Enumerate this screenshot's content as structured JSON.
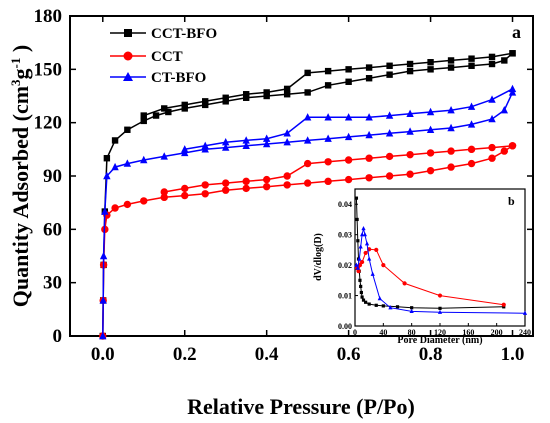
{
  "chart_data": [
    {
      "type": "line",
      "panel_label": "a",
      "xlabel": "Relative Pressure (P/Po)",
      "ylabel_main": "Quantity Adsorbed (cm",
      "ylabel_sup1": "3",
      "ylabel_mid": "g",
      "ylabel_sup2": "-1",
      "ylabel_end": " )",
      "xlim": [
        -0.08,
        1.05
      ],
      "ylim": [
        0,
        180
      ],
      "xticks": [
        0.0,
        0.2,
        0.4,
        0.6,
        0.8,
        1.0
      ],
      "xtick_labels": [
        "0.0",
        "0.2",
        "0.4",
        "0.6",
        "0.8",
        "1.0"
      ],
      "yticks": [
        0,
        30,
        60,
        90,
        120,
        150,
        180
      ],
      "ytick_labels": [
        "0",
        "30",
        "60",
        "90",
        "120",
        "150",
        "180"
      ],
      "legend_position": "top-left",
      "series": [
        {
          "name": "CCT-BFO",
          "color": "#000000",
          "marker": "square",
          "adsorption": {
            "x": [
              0.0,
              0.001,
              0.002,
              0.005,
              0.01,
              0.03,
              0.06,
              0.1,
              0.13,
              0.16,
              0.2,
              0.25,
              0.3,
              0.35,
              0.4,
              0.45,
              0.5,
              0.55,
              0.6,
              0.65,
              0.7,
              0.75,
              0.8,
              0.85,
              0.9,
              0.95,
              0.98,
              1.0
            ],
            "y": [
              0,
              20,
              40,
              70,
              100,
              110,
              116,
              121,
              124,
              126,
              128,
              130,
              132,
              134,
              135,
              136,
              137,
              141,
              143,
              145,
              147,
              149,
              150,
              151,
              152,
              153,
              155,
              159
            ]
          },
          "desorption": {
            "x": [
              1.0,
              0.95,
              0.9,
              0.85,
              0.8,
              0.75,
              0.7,
              0.65,
              0.6,
              0.55,
              0.5,
              0.45,
              0.4,
              0.35,
              0.3,
              0.25,
              0.2,
              0.15,
              0.1
            ],
            "y": [
              159,
              157,
              156,
              155,
              154,
              153,
              152,
              151,
              150,
              149,
              148,
              139,
              137,
              136,
              134,
              132,
              130,
              128,
              124
            ]
          }
        },
        {
          "name": "CCT",
          "color": "#ff0000",
          "marker": "circle",
          "adsorption": {
            "x": [
              0.0,
              0.001,
              0.002,
              0.005,
              0.01,
              0.03,
              0.06,
              0.1,
              0.15,
              0.2,
              0.25,
              0.3,
              0.35,
              0.4,
              0.45,
              0.5,
              0.55,
              0.6,
              0.65,
              0.7,
              0.75,
              0.8,
              0.85,
              0.9,
              0.95,
              0.98,
              1.0
            ],
            "y": [
              0,
              20,
              40,
              60,
              68,
              72,
              74,
              76,
              78,
              79,
              80,
              82,
              83,
              84,
              85,
              86,
              87,
              88,
              89,
              90,
              91,
              93,
              95,
              97,
              100,
              104,
              107
            ]
          },
          "desorption": {
            "x": [
              1.0,
              0.95,
              0.9,
              0.85,
              0.8,
              0.75,
              0.7,
              0.65,
              0.6,
              0.55,
              0.5,
              0.45,
              0.4,
              0.35,
              0.3,
              0.25,
              0.2,
              0.15
            ],
            "y": [
              107,
              106,
              105,
              104,
              103,
              102,
              101,
              100,
              99,
              98,
              97,
              90,
              88,
              87,
              86,
              85,
              83,
              81
            ]
          }
        },
        {
          "name": "CT-BFO",
          "color": "#0000ff",
          "marker": "triangle",
          "adsorption": {
            "x": [
              0.0,
              0.001,
              0.002,
              0.005,
              0.01,
              0.03,
              0.06,
              0.1,
              0.15,
              0.2,
              0.25,
              0.3,
              0.35,
              0.4,
              0.45,
              0.5,
              0.55,
              0.6,
              0.65,
              0.7,
              0.75,
              0.8,
              0.85,
              0.9,
              0.95,
              0.98,
              1.0
            ],
            "y": [
              0,
              20,
              45,
              70,
              90,
              95,
              97,
              99,
              101,
              103,
              105,
              106,
              107,
              108,
              109,
              110,
              111,
              112,
              113,
              114,
              115,
              116,
              117,
              119,
              122,
              127,
              137
            ]
          },
          "desorption": {
            "x": [
              1.0,
              0.95,
              0.9,
              0.85,
              0.8,
              0.75,
              0.7,
              0.65,
              0.6,
              0.55,
              0.5,
              0.45,
              0.4,
              0.35,
              0.3,
              0.25,
              0.2
            ],
            "y": [
              139,
              133,
              129,
              127,
              126,
              125,
              124,
              123,
              123,
              123,
              123,
              114,
              111,
              110,
              109,
              107,
              105
            ]
          }
        }
      ]
    },
    {
      "type": "line",
      "panel_label": "b",
      "location": "inset lower-right",
      "xlabel": "Pore Diameter (nm)",
      "ylabel": "dV/dlog(D)",
      "xlim": [
        0,
        240
      ],
      "ylim": [
        0,
        0.045
      ],
      "xticks": [
        0,
        40,
        80,
        120,
        160,
        200,
        240
      ],
      "xtick_labels": [
        "0",
        "40",
        "80",
        "120",
        "160",
        "200",
        "240"
      ],
      "yticks": [
        0.0,
        0.01,
        0.02,
        0.03,
        0.04
      ],
      "ytick_labels": [
        "0.00",
        "0.01",
        "0.02",
        "0.03",
        "0.04"
      ],
      "series": [
        {
          "name": "CCT-BFO",
          "color": "#000000",
          "marker": "square",
          "x": [
            2,
            3,
            4,
            5,
            6,
            7,
            8,
            9,
            10,
            12,
            15,
            20,
            30,
            40,
            60,
            80,
            120,
            210
          ],
          "y": [
            0.042,
            0.035,
            0.028,
            0.022,
            0.018,
            0.015,
            0.013,
            0.011,
            0.0095,
            0.0085,
            0.0078,
            0.0072,
            0.0068,
            0.0066,
            0.0063,
            0.006,
            0.0058,
            0.0063
          ]
        },
        {
          "name": "CCT",
          "color": "#ff0000",
          "marker": "circle",
          "x": [
            3,
            5,
            7,
            10,
            15,
            20,
            30,
            40,
            70,
            120,
            210
          ],
          "y": [
            0.019,
            0.018,
            0.02,
            0.021,
            0.024,
            0.0252,
            0.025,
            0.02,
            0.014,
            0.01,
            0.007
          ]
        },
        {
          "name": "CT-BFO",
          "color": "#0000ff",
          "marker": "triangle",
          "x": [
            2,
            4,
            6,
            8,
            10,
            12,
            14,
            17,
            20,
            25,
            35,
            50,
            80,
            120,
            240
          ],
          "y": [
            0.02,
            0.019,
            0.022,
            0.026,
            0.03,
            0.032,
            0.03,
            0.027,
            0.022,
            0.017,
            0.009,
            0.006,
            0.0048,
            0.0045,
            0.0042
          ]
        }
      ]
    }
  ]
}
